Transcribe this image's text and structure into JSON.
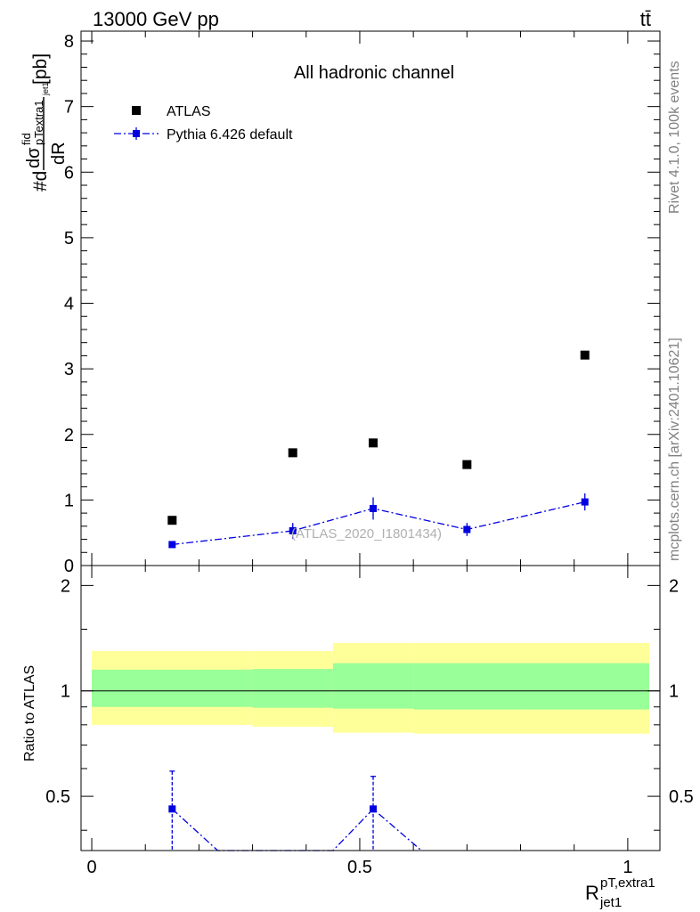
{
  "header": {
    "energy_label": "13000 GeV pp",
    "process_label": "tt̄"
  },
  "side_labels": {
    "rivet": "Rivet 4.1.0,  100k events",
    "mcplots": "mcplots.cern.ch [arXiv:2401.10621]"
  },
  "chart_data": [
    {
      "type": "scatter",
      "panel": "main",
      "title": "All hadronic channel",
      "ylabel": "#d—dσ^fid_pT,extra1 / dR_jet1 [pb]",
      "ylabel_parts": {
        "prefix": "#d",
        "numerator": "dσ",
        "sup": "fid",
        "sub": "p",
        "sub2": "Textra1",
        "sub3": "jet1",
        "denominator": "dR",
        "unit": "[pb]"
      },
      "xlabel": "R^pT,extra1_jet1",
      "xlabel_parts": {
        "base": "R",
        "sup": "pT,extra1",
        "sub": "jet1"
      },
      "xlim": [
        -0.02,
        1.06
      ],
      "ylim": [
        0,
        8.15
      ],
      "y_ticks": [
        0,
        1,
        2,
        3,
        4,
        5,
        6,
        7,
        8
      ],
      "y_tick_labels": [
        "0",
        "1",
        "2",
        "3",
        "4",
        "5",
        "6",
        "7",
        "8"
      ],
      "watermark": "(ATLAS_2020_I1801434)",
      "legend": [
        {
          "name": "ATLAS",
          "color": "#000000",
          "marker": "square"
        },
        {
          "name": "Pythia 6.426 default",
          "color": "#0000e0",
          "marker": "square",
          "line": "dash-dot"
        }
      ],
      "series": [
        {
          "name": "ATLAS",
          "color": "#000000",
          "x": [
            0.15,
            0.375,
            0.525,
            0.7,
            0.92
          ],
          "y": [
            0.69,
            1.72,
            1.87,
            1.54,
            3.21
          ]
        },
        {
          "name": "Pythia 6.426 default",
          "color": "#0000e0",
          "x": [
            0.15,
            0.375,
            0.525,
            0.7,
            0.92
          ],
          "y": [
            0.32,
            0.53,
            0.87,
            0.55,
            0.97
          ],
          "err": [
            0.05,
            0.12,
            0.17,
            0.1,
            0.13
          ]
        }
      ]
    },
    {
      "type": "line",
      "panel": "ratio",
      "ylabel": "Ratio to ATLAS",
      "xlim": [
        -0.02,
        1.06
      ],
      "ylim": [
        0.35,
        2.28
      ],
      "x_ticks": [
        0,
        0.5,
        1
      ],
      "x_tick_labels": [
        "0",
        "0.5",
        "1"
      ],
      "y_ticks": [
        0.5,
        1,
        2
      ],
      "y_tick_labels": [
        "0.5",
        "1",
        "2"
      ],
      "reference": 1,
      "bands": [
        {
          "bins": [
            [
              0,
              0.3
            ],
            [
              0.3,
              0.45
            ],
            [
              0.45,
              0.6
            ],
            [
              0.6,
              0.8
            ],
            [
              0.8,
              1.04
            ]
          ],
          "yellow_low": [
            0.8,
            0.79,
            0.76,
            0.755,
            0.755
          ],
          "yellow_high": [
            1.3,
            1.3,
            1.37,
            1.37,
            1.37
          ],
          "green_low": [
            0.9,
            0.895,
            0.89,
            0.885,
            0.885
          ],
          "green_high": [
            1.15,
            1.155,
            1.2,
            1.2,
            1.2
          ],
          "yellow_color": "#ffff99",
          "green_color": "#99ff99"
        }
      ],
      "series": [
        {
          "name": "Pythia 6.426 default",
          "color": "#0000e0",
          "x": [
            0.15,
            0.235,
            0.45,
            0.525,
            0.615
          ],
          "y": [
            0.46,
            0.35,
            0.35,
            0.46,
            0.35
          ],
          "err": [
            0.13,
            0,
            0,
            0.11,
            0
          ],
          "marker_x": [
            0.15,
            0.525
          ]
        }
      ]
    }
  ]
}
